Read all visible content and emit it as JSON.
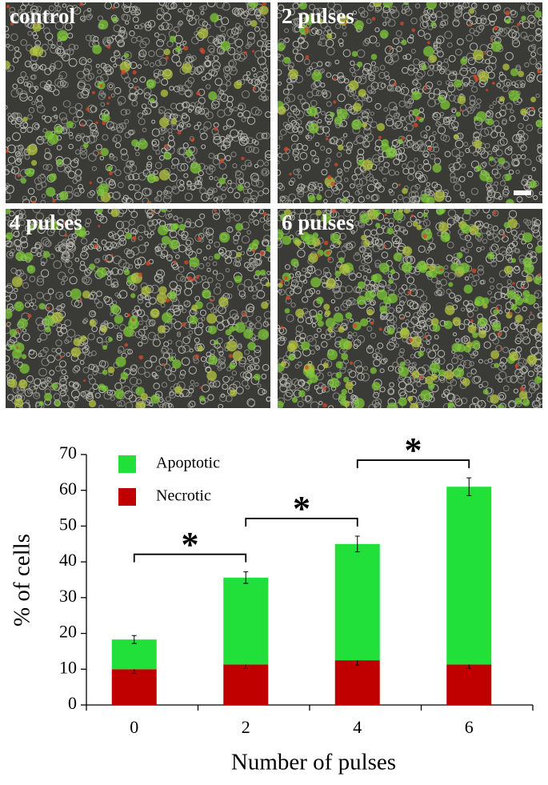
{
  "panels": [
    {
      "label": "control"
    },
    {
      "label": "2 pulses"
    },
    {
      "label": "4 pulses"
    },
    {
      "label": "6 pulses"
    }
  ],
  "chart_data": {
    "type": "stacked-bar",
    "x_label": "Number of pulses",
    "y_label": "% of cells",
    "categories": [
      "0",
      "2",
      "4",
      "6"
    ],
    "series": [
      {
        "name": "Necrotic",
        "color": "#c00000",
        "values": [
          10,
          11.3,
          12.5,
          11.3
        ],
        "errors": [
          1.2,
          1.1,
          1.4,
          1.1
        ]
      },
      {
        "name": "Apoptotic",
        "color": "#22e03a",
        "values": [
          8.3,
          24.3,
          32.5,
          49.7
        ],
        "errors": [
          1.1,
          1.6,
          2.2,
          2.5
        ]
      }
    ],
    "ylim": [
      0,
      70
    ],
    "yticks": [
      0,
      10,
      20,
      30,
      40,
      50,
      60,
      70
    ],
    "annotations": [
      {
        "text": "*",
        "between": [
          0,
          1
        ]
      },
      {
        "text": "*",
        "between": [
          1,
          2
        ]
      },
      {
        "text": "*",
        "between": [
          2,
          3
        ]
      }
    ]
  }
}
